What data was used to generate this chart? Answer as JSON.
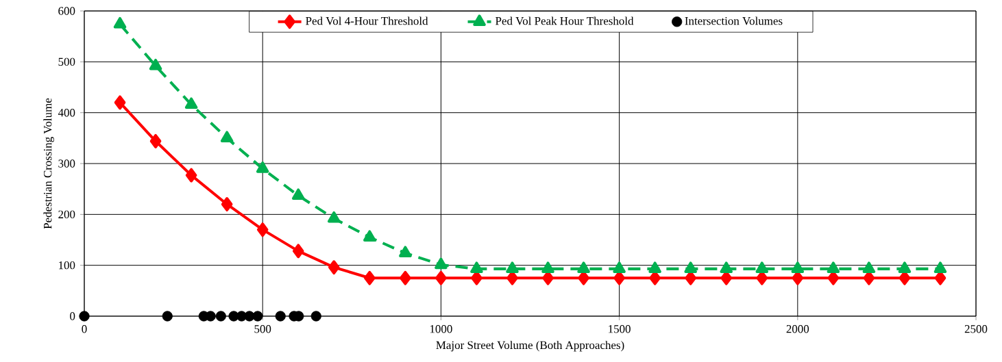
{
  "chart_data": {
    "type": "line",
    "xlabel": "Major Street Volume (Both Approaches)",
    "ylabel": "Pedestrian Crossing Volume",
    "xlim": [
      0,
      2500
    ],
    "xticks": [
      0,
      500,
      1000,
      1500,
      2000,
      2500
    ],
    "ylim": [
      0,
      600
    ],
    "yticks": [
      0,
      100,
      200,
      300,
      400,
      500,
      600
    ],
    "grid": true,
    "legend": "top",
    "series": [
      {
        "name": "Ped Vol 4-Hour Threshold",
        "color": "#ff0000",
        "marker": "diamond",
        "line_style": "solid",
        "x": [
          100,
          200,
          300,
          400,
          500,
          600,
          700,
          800,
          900,
          1000,
          1100,
          1200,
          1300,
          1400,
          1500,
          1600,
          1700,
          1800,
          1900,
          2000,
          2100,
          2200,
          2300,
          2400
        ],
        "values": [
          420,
          344,
          277,
          220,
          170,
          128,
          96,
          75,
          75,
          75,
          75,
          75,
          75,
          75,
          75,
          75,
          75,
          75,
          75,
          75,
          75,
          75,
          75,
          75
        ]
      },
      {
        "name": "Ped Vol Peak Hour Threshold",
        "color": "#00b050",
        "marker": "triangle",
        "line_style": "dashed",
        "x": [
          100,
          200,
          300,
          400,
          500,
          600,
          700,
          800,
          900,
          1000,
          1100,
          1200,
          1300,
          1400,
          1500,
          1600,
          1700,
          1800,
          1900,
          2000,
          2100,
          2200,
          2300,
          2400
        ],
        "values": [
          574,
          492,
          416,
          350,
          290,
          237,
          192,
          155,
          124,
          101,
          93,
          93,
          93,
          93,
          93,
          93,
          93,
          93,
          93,
          93,
          93,
          93,
          93,
          93
        ]
      },
      {
        "name": "Intersection Volumes",
        "type": "scatter",
        "color": "#000000",
        "marker": "circle",
        "x": [
          0,
          233,
          335,
          354,
          383,
          419,
          441,
          463,
          486,
          550,
          588,
          601,
          650
        ],
        "values": [
          0,
          0,
          0,
          0,
          0,
          0,
          0,
          0,
          0,
          0,
          0,
          0,
          0
        ]
      }
    ]
  }
}
